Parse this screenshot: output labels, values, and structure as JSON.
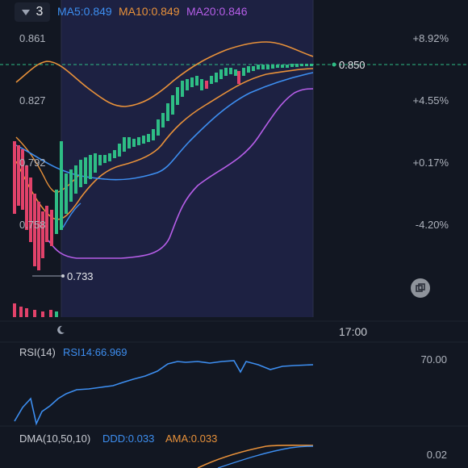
{
  "toolbar": {
    "interval_value": "3"
  },
  "ma_legend": {
    "ma5": "MA5:0.849",
    "ma10": "MA10:0.849",
    "ma20": "MA20:0.846"
  },
  "price_axis": {
    "levels": [
      "0.861",
      "0.827",
      "0.792",
      "0.758"
    ],
    "percents": [
      "+8.92%",
      "+4.55%",
      "+0.17%",
      "-4.20%"
    ],
    "current_price": "0.850",
    "low_marker": "0.733"
  },
  "time_axis": {
    "label": "17:00"
  },
  "rsi": {
    "title": "RSI(14)",
    "value": "RSI14:66.969",
    "level": "70.00"
  },
  "dma": {
    "title": "DMA(10,50,10)",
    "ddd": "DDD:0.033",
    "ama": "AMA:0.033",
    "level": "0.02"
  },
  "colors": {
    "bg": "#121722",
    "up": "#2ebd85",
    "down": "#e2426a",
    "ma5": "#3d8ef0",
    "ma10": "#e8913a",
    "ma20": "#b65ee8",
    "highlight": "#1f2244"
  },
  "icons": [
    "chevron-down-icon",
    "moon-icon",
    "fullscreen-icon"
  ]
}
